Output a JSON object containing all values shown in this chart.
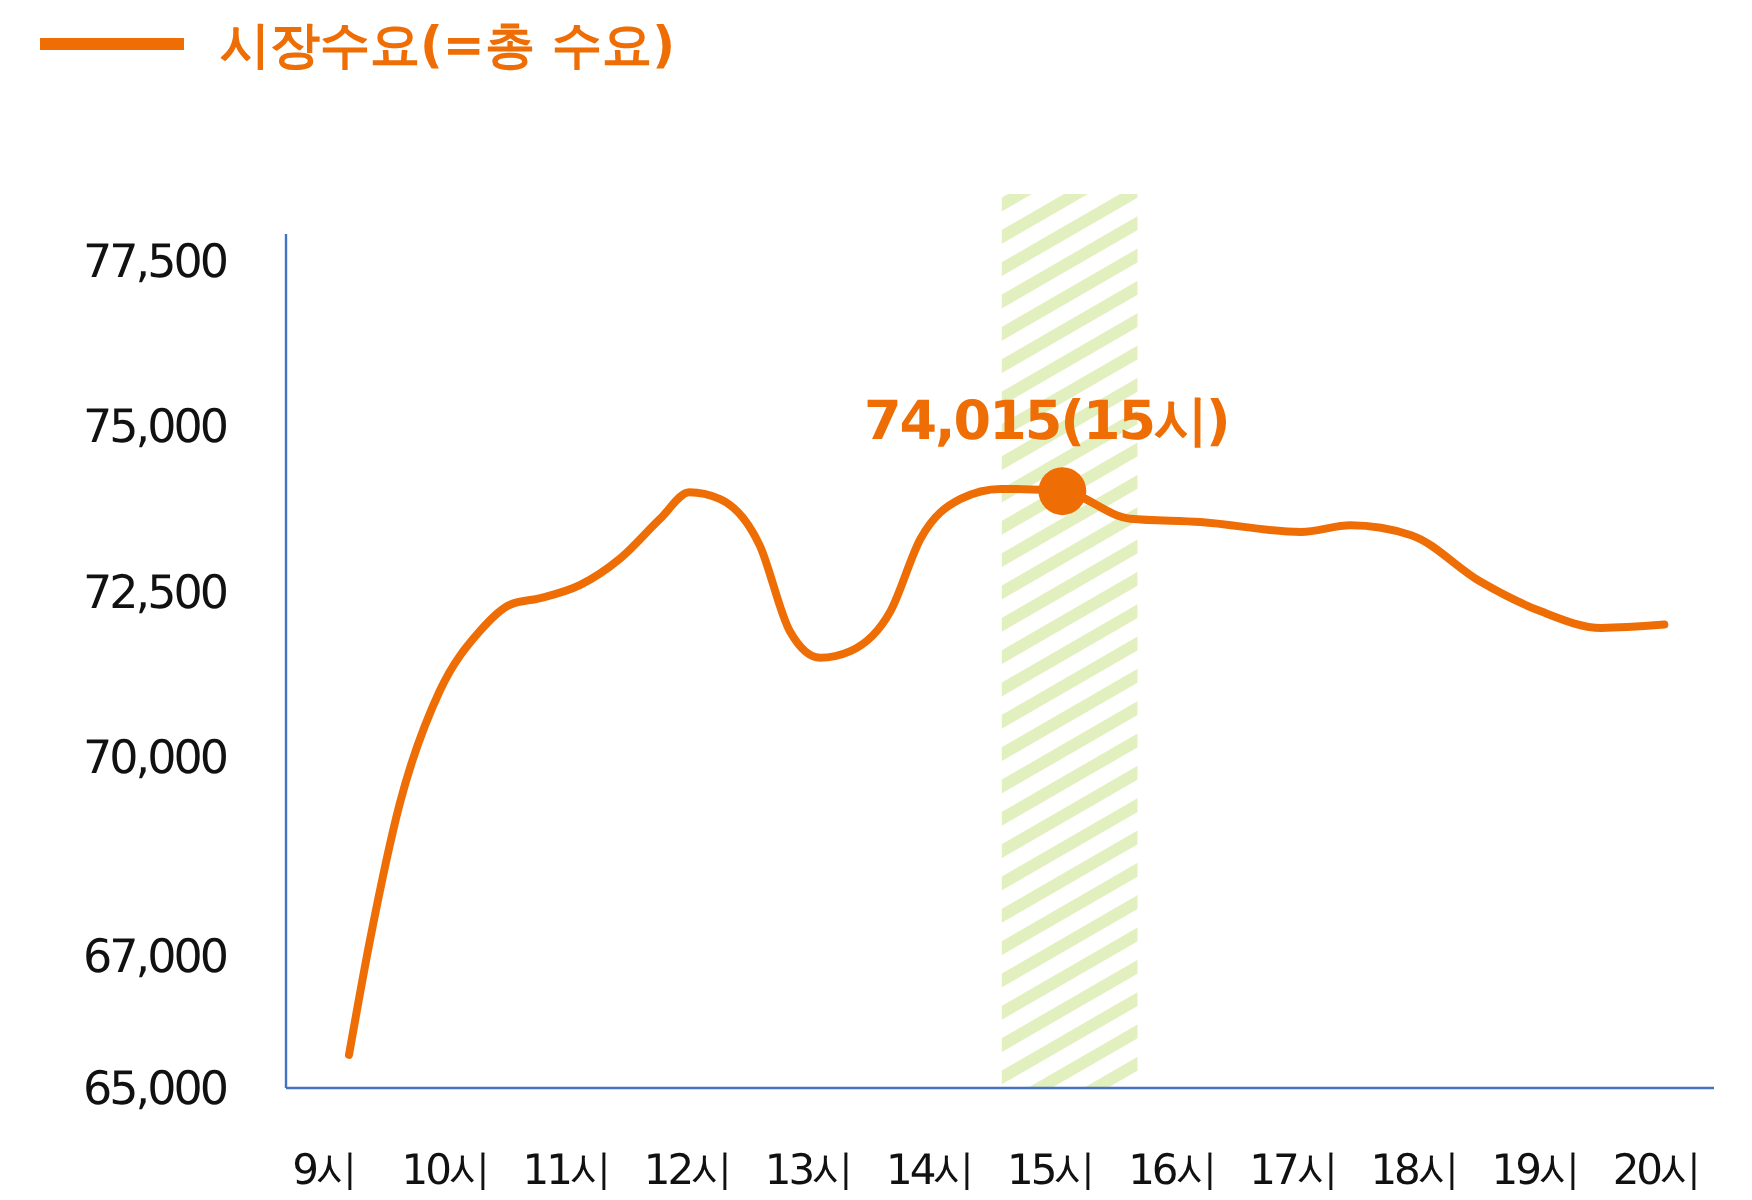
{
  "chart_data": {
    "type": "line",
    "legend": "top left",
    "marker": "none",
    "line_style": "solid",
    "xlim": [
      8.69,
      20.48
    ],
    "xticks": [
      {
        "value": 9,
        "label": "9시"
      },
      {
        "value": 10,
        "label": "10시"
      },
      {
        "value": 11,
        "label": "11시"
      },
      {
        "value": 12,
        "label": "12시"
      },
      {
        "value": 13,
        "label": "13시"
      },
      {
        "value": 14,
        "label": "14시"
      },
      {
        "value": 15,
        "label": "15시"
      },
      {
        "value": 16,
        "label": "16시"
      },
      {
        "value": 17,
        "label": "17시"
      },
      {
        "value": 18,
        "label": "18시"
      },
      {
        "value": 19,
        "label": "19시"
      },
      {
        "value": 20,
        "label": "20시"
      }
    ],
    "ylim": [
      65000,
      77900
    ],
    "yticks": [
      {
        "value": 65000,
        "label": "65,000"
      },
      {
        "value": 67000,
        "label": "67,000"
      },
      {
        "value": 70000,
        "label": "70,000"
      },
      {
        "value": 72500,
        "label": "72,500"
      },
      {
        "value": 75000,
        "label": "75,000"
      },
      {
        "value": 77500,
        "label": "77,500"
      }
    ],
    "series": [
      {
        "name": "시장수요(=총 수요)",
        "color": "#ee6e05",
        "x": [
          9.21,
          9.38,
          9.63,
          9.96,
          10.29,
          10.54,
          10.79,
          11.12,
          11.45,
          11.78,
          12.02,
          12.27,
          12.6,
          12.85,
          13.1,
          13.35,
          13.68,
          13.93,
          14.26,
          14.59,
          15.1,
          15.66,
          16.24,
          17.07,
          17.48,
          17.98,
          18.55,
          19.05,
          19.55,
          20.07
        ],
        "values": [
          65500,
          67200,
          69300,
          71000,
          71900,
          72300,
          72400,
          72600,
          73000,
          73600,
          74000,
          73900,
          73200,
          71900,
          71500,
          71600,
          72200,
          73300,
          73900,
          74050,
          74015,
          73600,
          73550,
          73400,
          73500,
          73350,
          72650,
          72200,
          71950,
          72000
        ]
      },
      {
        "type": "scatter",
        "color": "#ee6e05",
        "marker": "circle",
        "x": [
          15.1
        ],
        "values": [
          74015
        ]
      }
    ],
    "bands": [
      {
        "axis": "x",
        "from": 14.6,
        "to": 15.72,
        "color": "#e2efbf"
      }
    ],
    "annotations": [
      {
        "text": "74,015(15시)",
        "x": 15.1,
        "y": 74015
      }
    ]
  }
}
